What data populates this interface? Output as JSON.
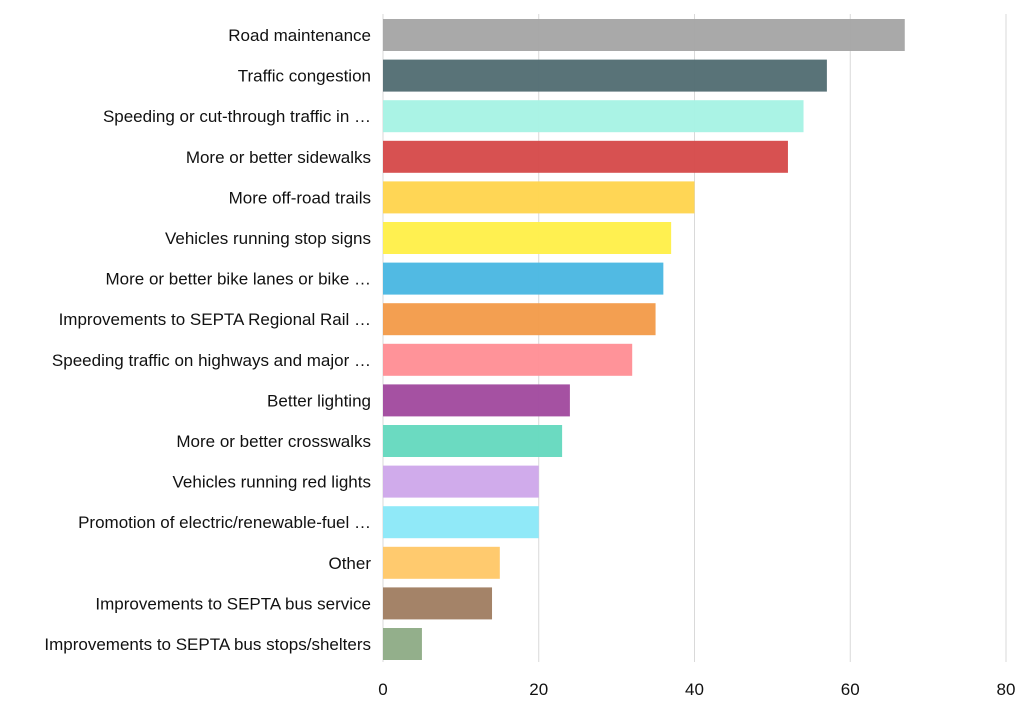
{
  "chart_data": {
    "type": "bar",
    "orientation": "horizontal",
    "title": "",
    "xlabel": "",
    "ylabel": "",
    "xlim": [
      0,
      80
    ],
    "xticks": [
      0,
      20,
      40,
      60,
      80
    ],
    "grid": true,
    "legend": "none",
    "categories": [
      "Road maintenance",
      "Traffic congestion",
      "Speeding or cut-through traffic in …",
      "More or better sidewalks",
      "More off-road trails",
      "Vehicles running stop signs",
      "More or better bike lanes or bike …",
      "Improvements to SEPTA Regional Rail …",
      "Speeding traffic on highways and major …",
      "Better lighting",
      "More or better crosswalks",
      "Vehicles running red lights",
      "Promotion of electric/renewable-fuel …",
      "Other",
      "Improvements to SEPTA bus service",
      "Improvements to SEPTA bus stops/shelters"
    ],
    "values": [
      67,
      57,
      54,
      52,
      40,
      37,
      36,
      35,
      32,
      24,
      23,
      20,
      20,
      15,
      14,
      5
    ],
    "colors": [
      "#a6a6a6",
      "#546e74",
      "#a7f3e4",
      "#d64b4b",
      "#ffd54f",
      "#fff04a",
      "#4bb8e2",
      "#f39c4b",
      "#ff8f96",
      "#a24b9f",
      "#66d9bf",
      "#cea8ea",
      "#8ce8f8",
      "#ffc869",
      "#a17f63",
      "#8fac87"
    ]
  }
}
